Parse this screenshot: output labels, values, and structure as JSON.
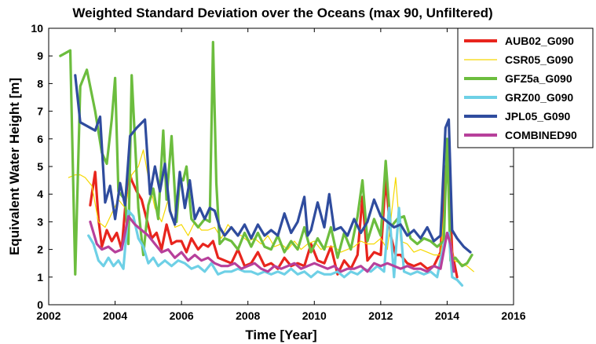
{
  "chart_data": {
    "type": "line",
    "title": "Weighted Standard Deviation over the Oceans (max 90, Unfiltered)",
    "xlabel": "Time [Year]",
    "ylabel": "Equivalent Water Height [m]",
    "xlim": [
      2002,
      2016
    ],
    "ylim": [
      0,
      10
    ],
    "xticks": [
      "2002",
      "2004",
      "2006",
      "2008",
      "2010",
      "2012",
      "2014",
      "2016"
    ],
    "yticks": [
      "0",
      "1",
      "2",
      "3",
      "4",
      "5",
      "6",
      "7",
      "8",
      "9",
      "10"
    ],
    "grid": false,
    "legend": "top-right",
    "series": [
      {
        "name": "AUB02_G090",
        "color": "#e8251d",
        "x": [
          2003.25,
          2003.4,
          2003.5,
          2003.6,
          2003.75,
          2003.9,
          2004.05,
          2004.2,
          2004.4,
          2004.5,
          2004.65,
          2004.8,
          2004.95,
          2005.1,
          2005.25,
          2005.4,
          2005.55,
          2005.7,
          2005.85,
          2006.0,
          2006.15,
          2006.3,
          2006.5,
          2006.65,
          2006.8,
          2006.95,
          2007.1,
          2007.3,
          2007.5,
          2007.7,
          2007.9,
          2008.1,
          2008.3,
          2008.5,
          2008.7,
          2008.9,
          2009.1,
          2009.3,
          2009.5,
          2009.7,
          2009.9,
          2010.1,
          2010.3,
          2010.5,
          2010.7,
          2010.9,
          2011.1,
          2011.3,
          2011.45,
          2011.6,
          2011.8,
          2012.0,
          2012.15,
          2012.3,
          2012.45,
          2012.6,
          2012.8,
          2013.0,
          2013.2,
          2013.4,
          2013.6,
          2013.8,
          2013.95,
          2014.05,
          2014.15,
          2014.3
        ],
        "values": [
          3.6,
          4.8,
          3.1,
          2.1,
          2.7,
          2.3,
          2.6,
          2.0,
          4.9,
          4.5,
          4.1,
          3.8,
          3.1,
          2.4,
          2.6,
          2.0,
          2.9,
          2.2,
          2.3,
          2.3,
          1.9,
          2.4,
          2.0,
          2.2,
          2.1,
          2.3,
          1.7,
          1.6,
          1.5,
          2.0,
          1.4,
          1.5,
          1.9,
          1.4,
          1.5,
          1.3,
          1.7,
          1.4,
          1.5,
          1.4,
          2.2,
          1.6,
          1.5,
          2.1,
          1.1,
          1.6,
          1.3,
          1.8,
          3.9,
          1.6,
          1.9,
          1.8,
          4.6,
          2.5,
          1.8,
          1.8,
          1.5,
          1.4,
          1.5,
          1.3,
          1.4,
          1.9,
          5.0,
          4.9,
          1.9,
          1.0
        ]
      },
      {
        "name": "CSR05_G090",
        "color": "#f5d800",
        "x": [
          2002.6,
          2002.8,
          2002.95,
          2003.1,
          2003.3,
          2003.5,
          2003.7,
          2003.9,
          2004.1,
          2004.3,
          2004.5,
          2004.7,
          2004.85,
          2005.0,
          2005.2,
          2005.4,
          2005.6,
          2005.8,
          2006.0,
          2006.2,
          2006.4,
          2006.6,
          2006.8,
          2007.0,
          2007.2,
          2007.4,
          2007.6,
          2007.8,
          2008.0,
          2008.2,
          2008.4,
          2008.6,
          2008.8,
          2009.0,
          2009.2,
          2009.4,
          2009.6,
          2009.8,
          2010.0,
          2010.2,
          2010.4,
          2010.6,
          2010.8,
          2011.0,
          2011.2,
          2011.4,
          2011.6,
          2011.8,
          2012.0,
          2012.2,
          2012.45,
          2012.6,
          2012.8,
          2013.0,
          2013.2,
          2013.4,
          2013.6,
          2013.8,
          2014.0,
          2014.1,
          2014.2,
          2014.4,
          2014.6,
          2014.8
        ],
        "values": [
          4.6,
          4.7,
          4.7,
          4.6,
          4.3,
          3.0,
          2.8,
          3.3,
          3.8,
          3.5,
          4.7,
          5.0,
          5.6,
          4.6,
          3.5,
          3.0,
          3.8,
          2.8,
          2.9,
          2.5,
          3.0,
          2.7,
          2.7,
          2.8,
          2.4,
          2.9,
          2.6,
          2.5,
          2.3,
          2.4,
          2.2,
          2.5,
          2.1,
          2.2,
          2.0,
          2.3,
          2.0,
          2.2,
          2.3,
          2.0,
          2.1,
          2.1,
          1.9,
          2.0,
          2.1,
          2.3,
          2.2,
          2.2,
          2.4,
          2.0,
          4.6,
          2.3,
          2.2,
          1.9,
          2.0,
          1.9,
          1.8,
          1.8,
          4.7,
          2.4,
          1.6,
          1.5,
          1.4,
          1.2
        ]
      },
      {
        "name": "GFZ5a_G090",
        "color": "#6cbd3e",
        "x": [
          2002.35,
          2002.65,
          2002.8,
          2002.95,
          2003.15,
          2003.4,
          2003.6,
          2003.75,
          2003.9,
          2004.0,
          2004.1,
          2004.3,
          2004.4,
          2004.5,
          2004.7,
          2004.85,
          2005.0,
          2005.15,
          2005.3,
          2005.45,
          2005.55,
          2005.7,
          2005.85,
          2005.95,
          2006.05,
          2006.15,
          2006.3,
          2006.5,
          2006.7,
          2006.85,
          2006.95,
          2007.05,
          2007.15,
          2007.3,
          2007.5,
          2007.7,
          2007.9,
          2008.1,
          2008.3,
          2008.5,
          2008.7,
          2008.9,
          2009.1,
          2009.3,
          2009.5,
          2009.7,
          2009.9,
          2010.1,
          2010.3,
          2010.5,
          2010.7,
          2010.9,
          2011.1,
          2011.3,
          2011.45,
          2011.6,
          2011.8,
          2012.0,
          2012.15,
          2012.3,
          2012.5,
          2012.7,
          2012.9,
          2013.1,
          2013.3,
          2013.5,
          2013.7,
          2013.9,
          2014.0,
          2014.1,
          2014.25,
          2014.45,
          2014.6,
          2014.75
        ],
        "values": [
          9.0,
          9.2,
          1.1,
          7.9,
          8.5,
          7.0,
          5.5,
          5.1,
          6.7,
          8.2,
          4.1,
          3.8,
          2.2,
          8.3,
          3.5,
          1.8,
          3.6,
          4.2,
          3.1,
          6.3,
          3.8,
          6.1,
          3.0,
          4.6,
          4.5,
          5.0,
          3.1,
          2.8,
          3.1,
          3.0,
          9.5,
          4.4,
          2.2,
          2.4,
          2.3,
          2.0,
          2.6,
          2.1,
          2.6,
          2.1,
          2.0,
          2.5,
          1.9,
          2.3,
          2.0,
          2.8,
          1.9,
          2.4,
          2.0,
          2.8,
          1.7,
          2.6,
          2.0,
          3.2,
          4.5,
          2.3,
          3.1,
          2.5,
          5.2,
          2.8,
          3.1,
          3.2,
          2.4,
          2.2,
          2.4,
          2.3,
          2.1,
          2.3,
          6.0,
          1.6,
          1.7,
          1.4,
          1.5,
          1.8
        ]
      },
      {
        "name": "GRZ00_G090",
        "color": "#6ed0e6",
        "x": [
          2003.2,
          2003.35,
          2003.5,
          2003.65,
          2003.8,
          2003.95,
          2004.1,
          2004.25,
          2004.4,
          2004.55,
          2004.7,
          2004.85,
          2005.0,
          2005.15,
          2005.3,
          2005.5,
          2005.7,
          2005.9,
          2006.1,
          2006.3,
          2006.5,
          2006.7,
          2006.9,
          2007.1,
          2007.3,
          2007.5,
          2007.7,
          2007.9,
          2008.1,
          2008.3,
          2008.5,
          2008.7,
          2008.9,
          2009.1,
          2009.3,
          2009.5,
          2009.7,
          2009.9,
          2010.1,
          2010.3,
          2010.5,
          2010.7,
          2010.9,
          2011.1,
          2011.3,
          2011.5,
          2011.7,
          2011.9,
          2012.1,
          2012.25,
          2012.4,
          2012.55,
          2012.7,
          2012.9,
          2013.1,
          2013.3,
          2013.5,
          2013.7,
          2013.9,
          2014.05,
          2014.15,
          2014.3,
          2014.45
        ],
        "values": [
          2.5,
          2.2,
          1.6,
          1.4,
          1.7,
          1.4,
          1.6,
          1.3,
          3.4,
          3.2,
          2.4,
          2.1,
          1.5,
          1.7,
          1.4,
          1.6,
          1.4,
          1.6,
          1.5,
          1.3,
          1.4,
          1.2,
          1.5,
          1.1,
          1.2,
          1.2,
          1.3,
          1.2,
          1.2,
          1.1,
          1.2,
          1.1,
          1.2,
          1.1,
          1.3,
          1.1,
          1.2,
          1.0,
          1.2,
          1.1,
          1.1,
          1.2,
          1.0,
          1.2,
          1.1,
          1.3,
          1.2,
          1.4,
          1.2,
          3.5,
          1.0,
          3.5,
          1.2,
          1.1,
          1.2,
          1.1,
          1.2,
          1.0,
          2.2,
          2.6,
          1.0,
          0.9,
          0.7
        ]
      },
      {
        "name": "JPL05_G090",
        "color": "#2f4c9e",
        "x": [
          2002.8,
          2002.95,
          2003.4,
          2003.55,
          2003.7,
          2003.85,
          2004.0,
          2004.15,
          2004.3,
          2004.45,
          2004.65,
          2004.9,
          2005.05,
          2005.2,
          2005.35,
          2005.5,
          2005.65,
          2005.8,
          2005.95,
          2006.1,
          2006.25,
          2006.4,
          2006.55,
          2006.7,
          2006.85,
          2007.0,
          2007.15,
          2007.3,
          2007.5,
          2007.7,
          2007.9,
          2008.1,
          2008.3,
          2008.5,
          2008.7,
          2008.9,
          2009.1,
          2009.3,
          2009.5,
          2009.7,
          2009.8,
          2009.9,
          2010.1,
          2010.3,
          2010.45,
          2010.6,
          2010.8,
          2011.0,
          2011.2,
          2011.4,
          2011.6,
          2011.8,
          2012.0,
          2012.2,
          2012.4,
          2012.6,
          2012.8,
          2013.0,
          2013.2,
          2013.4,
          2013.6,
          2013.8,
          2013.95,
          2014.05,
          2014.15,
          2014.3,
          2014.5,
          2014.7
        ],
        "values": [
          8.3,
          6.6,
          6.3,
          6.8,
          3.7,
          4.3,
          3.1,
          4.4,
          3.6,
          6.1,
          6.4,
          6.7,
          4.0,
          5.0,
          4.1,
          5.1,
          3.4,
          2.9,
          4.8,
          3.5,
          4.5,
          3.1,
          3.5,
          3.1,
          3.5,
          3.4,
          2.8,
          2.5,
          2.8,
          2.5,
          2.9,
          2.4,
          2.9,
          2.5,
          2.7,
          2.5,
          3.3,
          2.6,
          3.0,
          3.9,
          2.5,
          2.7,
          3.7,
          2.8,
          4.0,
          2.7,
          2.8,
          2.5,
          3.1,
          2.6,
          3.0,
          3.8,
          3.2,
          3.0,
          2.8,
          2.9,
          2.5,
          2.7,
          2.4,
          2.8,
          2.3,
          2.5,
          6.4,
          6.7,
          2.7,
          2.4,
          2.1,
          1.9
        ]
      },
      {
        "name": "COMBINED90",
        "color": "#b7409b",
        "x": [
          2003.25,
          2003.45,
          2003.6,
          2003.8,
          2004.0,
          2004.2,
          2004.4,
          2004.6,
          2004.8,
          2005.0,
          2005.2,
          2005.4,
          2005.6,
          2005.8,
          2006.0,
          2006.2,
          2006.4,
          2006.6,
          2006.8,
          2007.0,
          2007.2,
          2007.4,
          2007.6,
          2007.8,
          2008.0,
          2008.2,
          2008.4,
          2008.6,
          2008.8,
          2009.0,
          2009.2,
          2009.4,
          2009.6,
          2009.8,
          2010.0,
          2010.2,
          2010.4,
          2010.6,
          2010.8,
          2011.0,
          2011.2,
          2011.4,
          2011.6,
          2011.8,
          2012.0,
          2012.2,
          2012.4,
          2012.6,
          2012.8,
          2013.0,
          2013.2,
          2013.4,
          2013.6,
          2013.8,
          2014.0,
          2014.1,
          2014.2
        ],
        "values": [
          3.0,
          2.2,
          2.0,
          2.1,
          1.9,
          2.0,
          3.2,
          2.9,
          2.7,
          2.5,
          2.2,
          1.9,
          2.0,
          1.7,
          1.9,
          1.6,
          1.8,
          1.6,
          1.7,
          1.5,
          1.4,
          1.4,
          1.5,
          1.3,
          1.4,
          1.5,
          1.3,
          1.2,
          1.4,
          1.3,
          1.4,
          1.5,
          1.3,
          1.4,
          1.5,
          1.4,
          1.3,
          1.4,
          1.2,
          1.3,
          1.3,
          1.4,
          1.2,
          1.5,
          1.4,
          1.5,
          1.4,
          1.3,
          1.4,
          1.3,
          1.3,
          1.2,
          1.4,
          1.3,
          2.6,
          2.2,
          1.2
        ]
      }
    ]
  }
}
